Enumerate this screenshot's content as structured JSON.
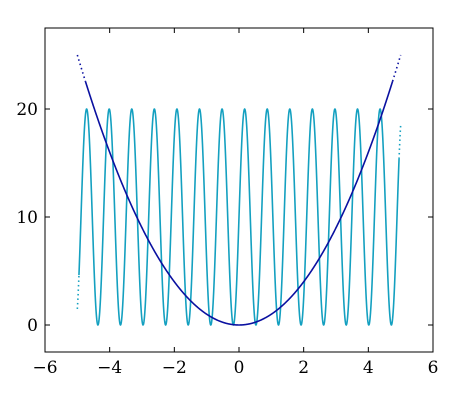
{
  "chart_data": {
    "type": "line",
    "title": "",
    "xlabel": "",
    "ylabel": "",
    "xlim": [
      -6,
      6
    ],
    "ylim": [
      -2.5,
      27.5
    ],
    "x_ticks": [
      -6,
      -4,
      -2,
      0,
      2,
      4,
      6
    ],
    "x_tick_labels": [
      "−6",
      "−4",
      "−2",
      "0",
      "2",
      "4",
      "6"
    ],
    "y_ticks": [
      0,
      10,
      20
    ],
    "y_tick_labels": [
      "0",
      "10",
      "20"
    ],
    "grid": false,
    "legend": "none",
    "series": [
      {
        "color": "#14a0c0",
        "function": "10 + 10*sin(9*x)",
        "domain": [
          -5,
          5
        ],
        "solid_domain": [
          -4.95,
          4.95
        ],
        "dotted_ends": true
      },
      {
        "color": "#0a10a0",
        "function": "x^2",
        "domain": [
          -5,
          5
        ],
        "solid_domain": [
          -4.75,
          4.75
        ],
        "dotted_ends": true
      }
    ]
  }
}
